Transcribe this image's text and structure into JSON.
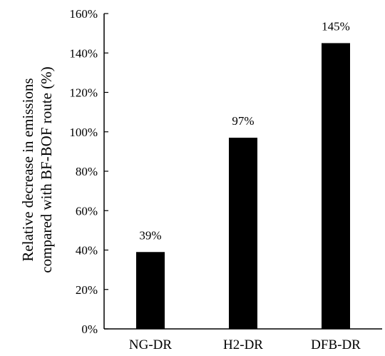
{
  "chart_data": {
    "type": "bar",
    "categories": [
      "NG-DR",
      "H2-DR",
      "DFB-DR"
    ],
    "values": [
      39,
      97,
      145
    ],
    "data_labels": [
      "39%",
      "97%",
      "145%"
    ],
    "ylabel_lines": [
      "Relative decrease in emissions",
      "compared with BF-BOF route (%)"
    ],
    "xlabel": "",
    "ylim": [
      0,
      160
    ],
    "yticks": [
      0,
      20,
      40,
      60,
      80,
      100,
      120,
      140,
      160
    ],
    "ytick_labels": [
      "0%",
      "20%",
      "40%",
      "60%",
      "80%",
      "100%",
      "120%",
      "140%",
      "160%"
    ],
    "grid": false,
    "legend": "none",
    "bar_color": "#000000",
    "axis_color": "#000000"
  }
}
